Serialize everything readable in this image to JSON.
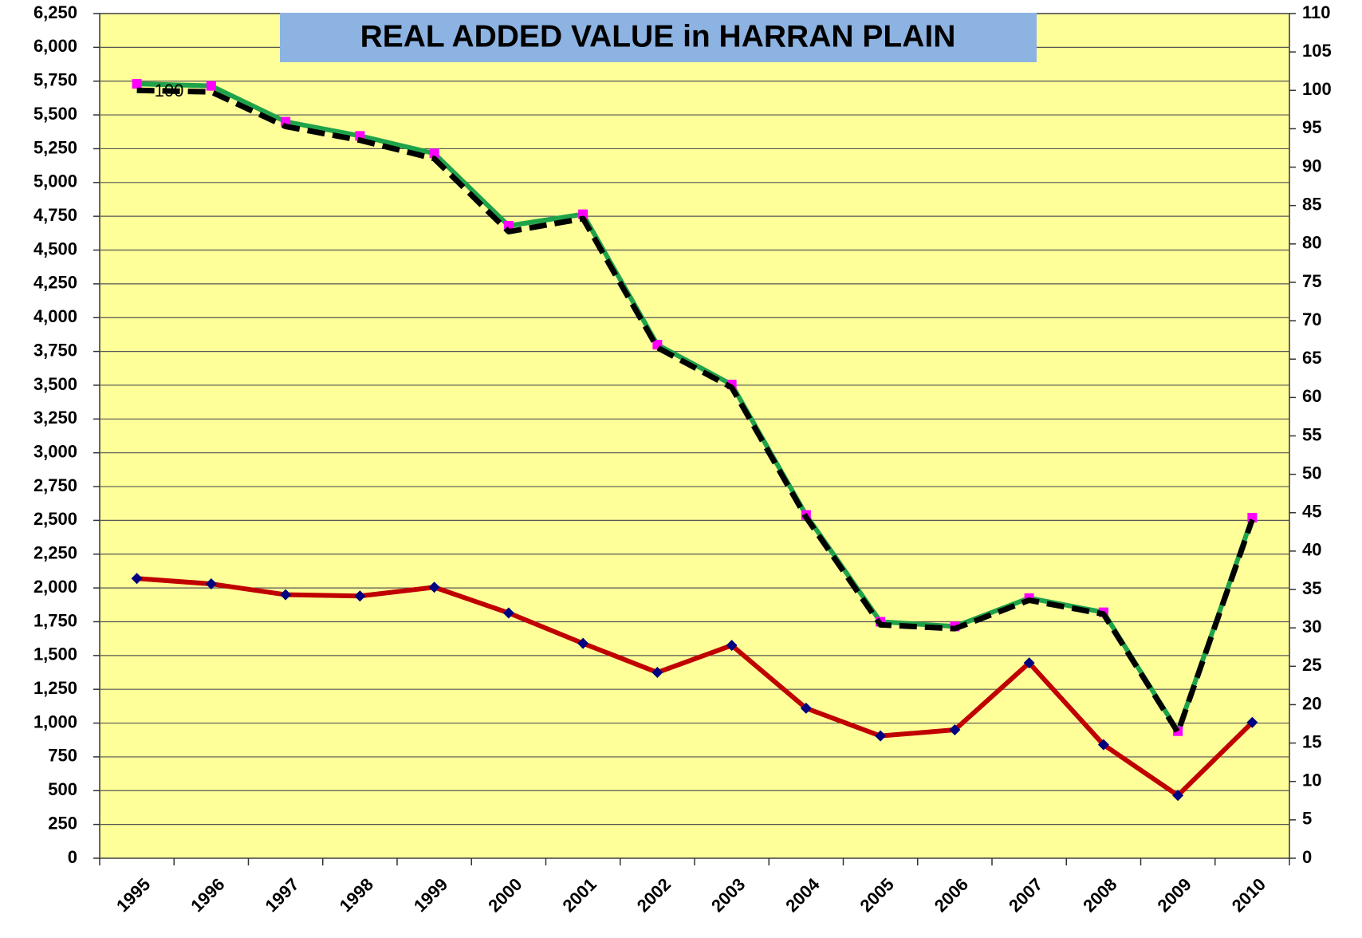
{
  "chart_data": {
    "type": "line",
    "title": "REAL  ADDED VALUE in HARRAN PLAIN",
    "categories": [
      "1995",
      "1996",
      "1997",
      "1998",
      "1999",
      "2000",
      "2001",
      "2002",
      "2003",
      "2004",
      "2005",
      "2006",
      "2007",
      "2008",
      "2009",
      "2010"
    ],
    "series": [
      {
        "color": "#1fa34a",
        "marker_color": "#ff00ff",
        "marker": "square",
        "axis": "y",
        "values": [
          5730,
          5715,
          5450,
          5345,
          5215,
          4680,
          4765,
          3800,
          3505,
          2540,
          1750,
          1715,
          1925,
          1820,
          940,
          2520
        ]
      },
      {
        "color": "#000000",
        "dashed": true,
        "axis": "y2",
        "values": [
          100,
          99.8,
          95.3,
          93.5,
          91.1,
          81.6,
          83.3,
          66.5,
          61.3,
          44.4,
          30.4,
          29.9,
          33.6,
          31.8,
          16.4,
          44.1
        ],
        "value_labels": [
          "100",
          null,
          null,
          null,
          null,
          null,
          null,
          null,
          null,
          null,
          null,
          null,
          null,
          null,
          null,
          null
        ]
      },
      {
        "color": "#c00000",
        "marker_color": "#000080",
        "marker": "diamond",
        "axis": "y",
        "values": [
          2070,
          2030,
          1950,
          1940,
          2005,
          1815,
          1590,
          1375,
          1575,
          1110,
          905,
          950,
          1445,
          840,
          465,
          1005
        ]
      }
    ],
    "ylim": [
      0,
      6250
    ],
    "yticks": [
      0,
      250,
      500,
      750,
      {
        "value": 1000,
        "label": "1,000"
      },
      {
        "value": 1250,
        "label": "1,250"
      },
      {
        "value": 1500,
        "label": "1,500"
      },
      {
        "value": 1750,
        "label": "1,750"
      },
      {
        "value": 2000,
        "label": "2,000"
      },
      {
        "value": 2250,
        "label": "2,250"
      },
      {
        "value": 2500,
        "label": "2,500"
      },
      {
        "value": 2750,
        "label": "2,750"
      },
      {
        "value": 3000,
        "label": "3,000"
      },
      {
        "value": 3250,
        "label": "3,250"
      },
      {
        "value": 3500,
        "label": "3,500"
      },
      {
        "value": 3750,
        "label": "3,750"
      },
      {
        "value": 4000,
        "label": "4,000"
      },
      {
        "value": 4250,
        "label": "4,250"
      },
      {
        "value": 4500,
        "label": "4,500"
      },
      {
        "value": 4750,
        "label": "4,750"
      },
      {
        "value": 5000,
        "label": "5,000"
      },
      {
        "value": 5250,
        "label": "5,250"
      },
      {
        "value": 5500,
        "label": "5,500"
      },
      {
        "value": 5750,
        "label": "5,750"
      },
      {
        "value": 6000,
        "label": "6,000"
      },
      {
        "value": 6250,
        "label": "6,250"
      }
    ],
    "y2lim": [
      0,
      110
    ],
    "y2ticks": [
      0,
      5,
      10,
      15,
      20,
      25,
      30,
      35,
      40,
      45,
      50,
      55,
      60,
      65,
      70,
      75,
      80,
      85,
      90,
      95,
      100,
      105,
      110
    ],
    "grid": true,
    "plot_background": "#ffff99"
  }
}
